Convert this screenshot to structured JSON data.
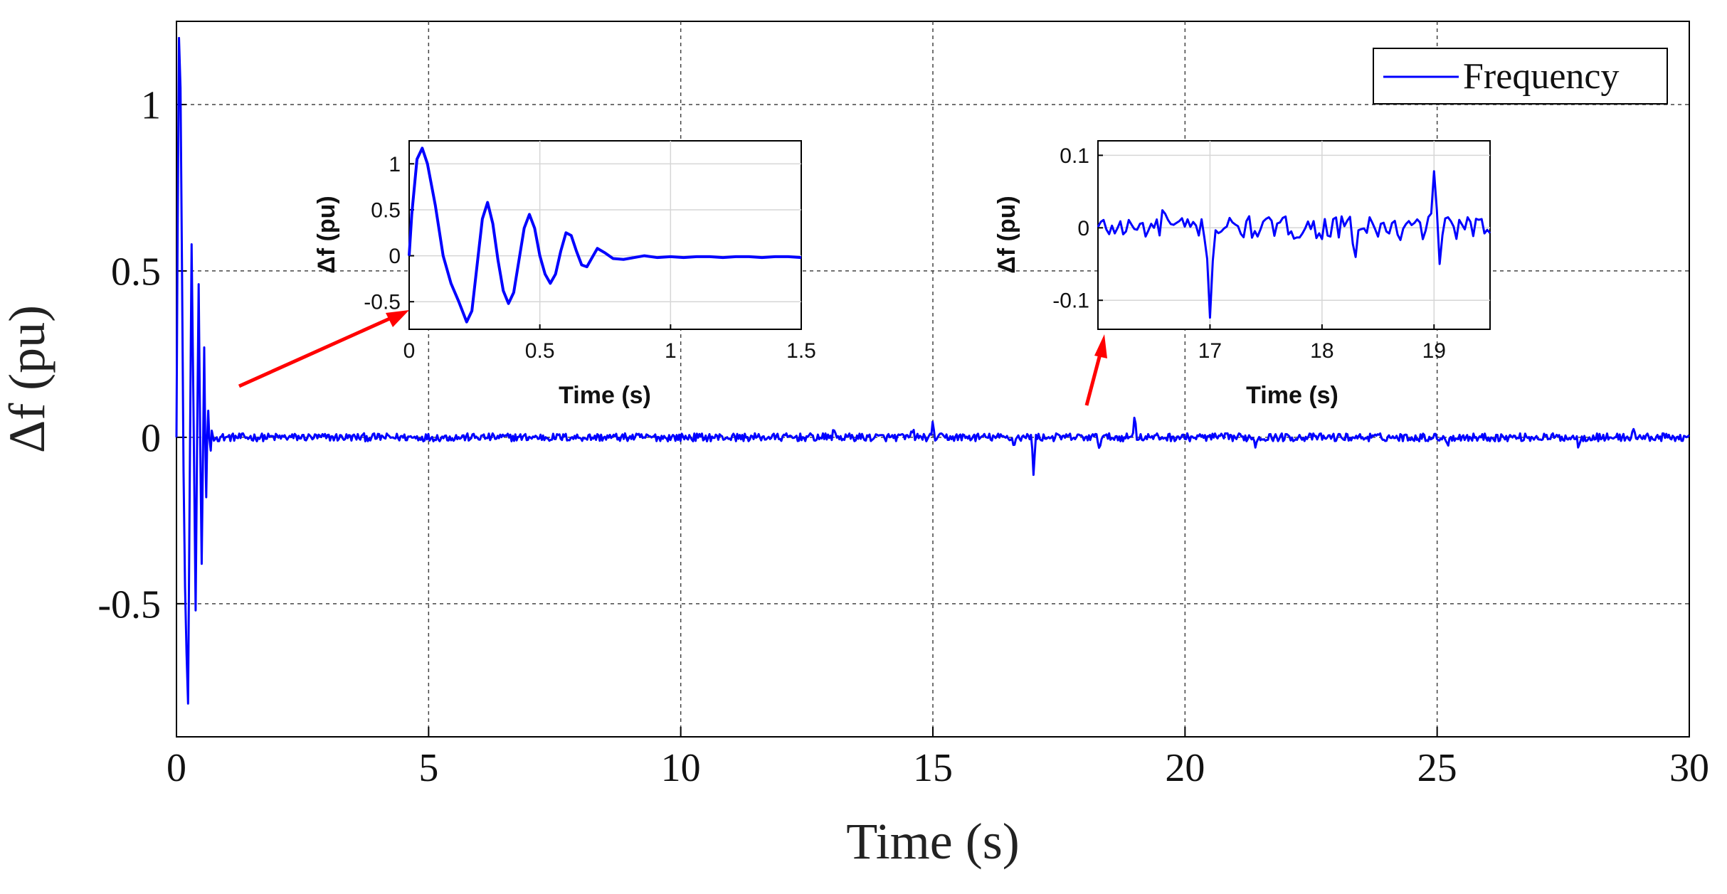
{
  "chart_data": [
    {
      "id": "main",
      "type": "line",
      "title": "",
      "xlabel": "Time (s)",
      "ylabel": "Δf (pu)",
      "xlim": [
        0,
        30
      ],
      "ylim": [
        -0.9,
        1.25
      ],
      "xticks": [
        0,
        5,
        10,
        15,
        20,
        25,
        30
      ],
      "xtick_labels": [
        "0",
        "5",
        "10",
        "15",
        "20",
        "25",
        "30"
      ],
      "yticks": [
        -0.5,
        0,
        0.5,
        1
      ],
      "ytick_labels": [
        "-0.5",
        "0",
        "0.5",
        "1"
      ],
      "grid": "dashed",
      "legend": {
        "entries": [
          "Frequency"
        ],
        "location": "top-right"
      },
      "series": [
        {
          "name": "Frequency",
          "color": "#0000ff",
          "transient_x": [
            0.0,
            0.02,
            0.05,
            0.08,
            0.11,
            0.14,
            0.17,
            0.2,
            0.23,
            0.25,
            0.27,
            0.3,
            0.34,
            0.38,
            0.41,
            0.44,
            0.47,
            0.5,
            0.53,
            0.55,
            0.57,
            0.59,
            0.61,
            0.63,
            0.65,
            0.68,
            0.7,
            0.74,
            0.8
          ],
          "transient_y": [
            0.0,
            0.55,
            1.2,
            1.05,
            0.5,
            -0.1,
            -0.45,
            -0.65,
            -0.8,
            -0.4,
            0.0,
            0.58,
            0.05,
            -0.52,
            0.0,
            0.46,
            0.0,
            -0.38,
            0.0,
            0.27,
            0.0,
            -0.18,
            0.0,
            0.08,
            0.0,
            -0.04,
            0.02,
            -0.01,
            0.0
          ],
          "noise_amplitude": 0.012,
          "events": [
            {
              "t": 13.03,
              "dy": 0.035
            },
            {
              "t": 14.6,
              "dy": 0.03
            },
            {
              "t": 15.0,
              "dy": 0.04
            },
            {
              "t": 16.6,
              "dy": -0.03
            },
            {
              "t": 17.0,
              "dy": -0.12
            },
            {
              "t": 18.3,
              "dy": -0.03
            },
            {
              "t": 19.0,
              "dy": 0.08
            },
            {
              "t": 21.4,
              "dy": -0.03
            },
            {
              "t": 25.2,
              "dy": -0.03
            },
            {
              "t": 27.8,
              "dy": -0.03
            },
            {
              "t": 28.9,
              "dy": 0.03
            }
          ]
        }
      ]
    },
    {
      "id": "inset1",
      "type": "line",
      "title": "",
      "xlabel": "Time (s)",
      "ylabel": "Δf (pu)",
      "xlim": [
        0,
        1.5
      ],
      "ylim": [
        -0.8,
        1.25
      ],
      "xticks": [
        0,
        0.5,
        1,
        1.5
      ],
      "xtick_labels": [
        "0",
        "0.5",
        "1",
        "1.5"
      ],
      "yticks": [
        -0.5,
        0,
        0.5,
        1
      ],
      "ytick_labels": [
        "-0.5",
        "0",
        "0.5",
        "1"
      ],
      "grid": "solid",
      "series": [
        {
          "name": "Frequency",
          "color": "#0000ff",
          "x": [
            0.0,
            0.01,
            0.03,
            0.05,
            0.07,
            0.1,
            0.13,
            0.16,
            0.19,
            0.22,
            0.24,
            0.26,
            0.28,
            0.3,
            0.32,
            0.34,
            0.36,
            0.38,
            0.4,
            0.42,
            0.44,
            0.46,
            0.48,
            0.5,
            0.52,
            0.54,
            0.56,
            0.58,
            0.6,
            0.62,
            0.64,
            0.66,
            0.68,
            0.7,
            0.72,
            0.75,
            0.78,
            0.82,
            0.86,
            0.9,
            0.95,
            1.0,
            1.05,
            1.1,
            1.15,
            1.2,
            1.25,
            1.3,
            1.35,
            1.4,
            1.45,
            1.5
          ],
          "y": [
            0.0,
            0.45,
            1.05,
            1.17,
            1.0,
            0.55,
            0.0,
            -0.3,
            -0.5,
            -0.72,
            -0.6,
            -0.1,
            0.4,
            0.58,
            0.35,
            -0.05,
            -0.38,
            -0.52,
            -0.4,
            -0.05,
            0.3,
            0.45,
            0.3,
            0.0,
            -0.2,
            -0.3,
            -0.2,
            0.05,
            0.25,
            0.22,
            0.05,
            -0.1,
            -0.12,
            -0.02,
            0.08,
            0.03,
            -0.03,
            -0.04,
            -0.02,
            0.0,
            -0.02,
            -0.01,
            -0.02,
            -0.01,
            -0.01,
            -0.02,
            -0.01,
            -0.01,
            -0.02,
            -0.01,
            -0.01,
            -0.02
          ]
        }
      ]
    },
    {
      "id": "inset2",
      "type": "line",
      "title": "",
      "xlabel": "Time (s)",
      "ylabel": "Δf (pu)",
      "xlim": [
        16.0,
        19.5
      ],
      "ylim": [
        -0.14,
        0.12
      ],
      "xticks": [
        17,
        18,
        19
      ],
      "xtick_labels": [
        "17",
        "18",
        "19"
      ],
      "yticks": [
        -0.1,
        0,
        0.1
      ],
      "ytick_labels": [
        "-0.1",
        "0",
        "0.1"
      ],
      "grid": "solid",
      "series": [
        {
          "name": "Frequency",
          "color": "#0000ff",
          "noise_amplitude": 0.016,
          "events": [
            {
              "t": 16.6,
              "dy": 0.028
            },
            {
              "t": 17.0,
              "dy": -0.12
            },
            {
              "t": 18.3,
              "dy": -0.03
            },
            {
              "t": 18.7,
              "dy": -0.02
            },
            {
              "t": 19.0,
              "dy": 0.085
            },
            {
              "t": 19.05,
              "dy": -0.038
            }
          ]
        }
      ]
    }
  ],
  "legend": {
    "label": "Frequency",
    "line_color": "#0000ff"
  },
  "annotations": {
    "arrow_color": "#ff0000"
  }
}
